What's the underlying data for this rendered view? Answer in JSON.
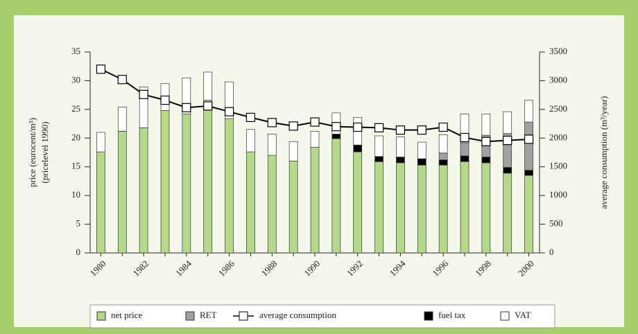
{
  "chart_data": {
    "type": "bar",
    "ylabel": [
      "price (eurocent/m³)",
      "(pricelevel 1990)"
    ],
    "y2label": "average consumption (m³/year)",
    "categories": [
      "1980",
      null,
      "1982",
      null,
      "1984",
      null,
      "1986",
      null,
      "1988",
      null,
      "1990",
      null,
      "1992",
      null,
      "1994",
      null,
      "1996",
      null,
      "1998",
      null,
      "2000"
    ],
    "stacked": true,
    "series": [
      {
        "name": "net price",
        "color": "#b5d98a",
        "values": [
          17.6,
          21.2,
          21.8,
          24.8,
          24.2,
          26.6,
          23.4,
          17.6,
          17.0,
          16.0,
          18.4,
          19.9,
          17.6,
          15.9,
          15.7,
          15.3,
          15.3,
          15.9,
          15.7,
          13.9,
          13.5
        ]
      },
      {
        "name": "RET",
        "color": "#a0a0a0",
        "values": [
          0,
          0,
          0,
          0,
          0,
          0,
          0,
          0,
          0,
          0,
          0,
          0,
          0,
          0,
          0,
          0,
          1.2,
          2.3,
          3.8,
          5.9,
          8.4
        ]
      },
      {
        "name": "average consumption",
        "type": "line",
        "axis": "y2",
        "color": "#000000",
        "values": [
          3200,
          3020,
          2760,
          2660,
          2530,
          2560,
          2460,
          2360,
          2270,
          2210,
          2280,
          2200,
          2190,
          2180,
          2140,
          2140,
          2190,
          2010,
          1940,
          1960,
          1980
        ]
      },
      {
        "name": "fuel tax",
        "color": "#000000",
        "values": [
          0,
          0,
          0,
          0,
          0,
          0,
          0,
          0,
          0,
          0,
          0,
          0.8,
          1.2,
          0.9,
          1.0,
          1.1,
          0.9,
          1.0,
          1.0,
          1.0,
          0.9
        ]
      },
      {
        "name": "VAT",
        "color": "#ffffff",
        "values": [
          3.4,
          4.2,
          7.1,
          4.7,
          6.3,
          4.9,
          6.4,
          3.9,
          3.7,
          3.4,
          2.8,
          3.7,
          4.8,
          3.6,
          3.5,
          2.9,
          3.2,
          5.0,
          3.7,
          3.8,
          3.8
        ]
      }
    ],
    "ylim": [
      0,
      35
    ],
    "yticks": [
      0,
      5,
      10,
      15,
      20,
      25,
      30,
      35
    ],
    "y2lim": [
      0,
      3500
    ],
    "y2ticks": [
      0,
      500,
      1000,
      1500,
      2000,
      2500,
      3000,
      3500
    ]
  }
}
